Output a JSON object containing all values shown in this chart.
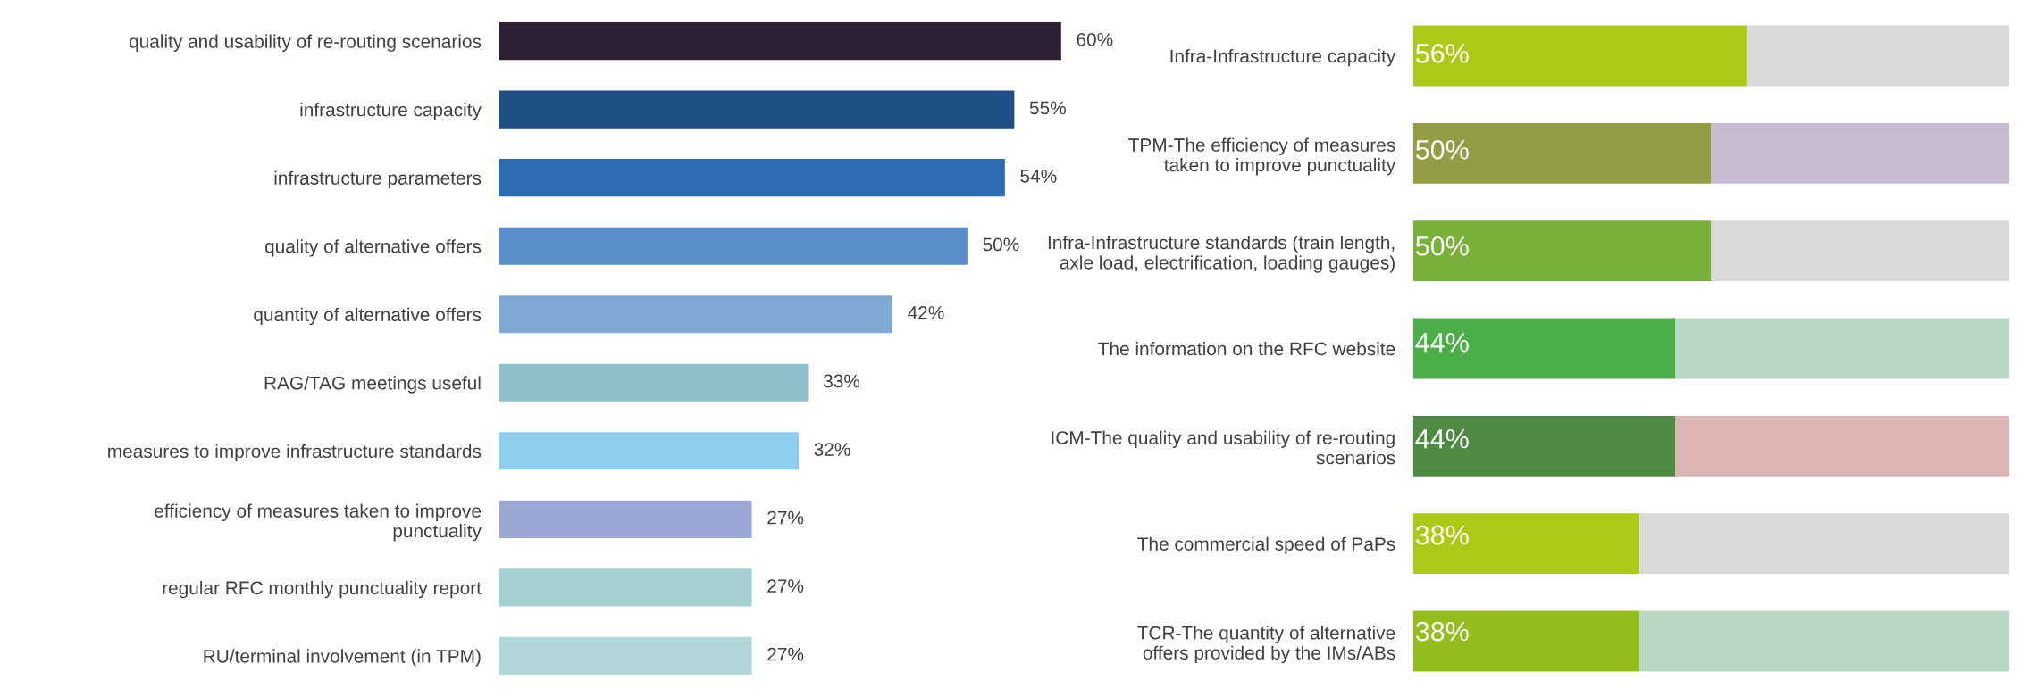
{
  "chart_data": [
    {
      "type": "bar",
      "orientation": "horizontal",
      "categories": [
        "quality and usability of re-routing scenarios",
        "infrastructure capacity",
        "infrastructure parameters",
        "quality of alternative offers",
        "quantity of alternative offers",
        "RAG/TAG meetings useful",
        "measures to improve infrastructure standards",
        "efficiency of measures taken to improve\npunctuality",
        "regular RFC monthly punctuality report",
        "RU/terminal involvement (in TPM)"
      ],
      "values": [
        60,
        55,
        54,
        50,
        42,
        33,
        32,
        27,
        27,
        27
      ],
      "colors": [
        "#2e1f33",
        "#1f4e85",
        "#2b6cb3",
        "#5a8fcb",
        "#80a8d4",
        "#8fc1c9",
        "#8ecff0",
        "#9ba8d6",
        "#a5d0d3",
        "#b2d7da"
      ],
      "value_labels": [
        "60%",
        "55%",
        "54%",
        "50%",
        "42%",
        "33%",
        "32%",
        "27%",
        "27%",
        "27%"
      ],
      "tick_labels": "y",
      "grid": false,
      "legend": false
    },
    {
      "type": "bar",
      "orientation": "horizontal",
      "stacked": true,
      "categories": [
        "Infra-Infrastructure capacity",
        "TPM-The efficiency of measures\ntaken to improve punctuality",
        "Infra-Infrastructure standards (train length,\naxle load, electrification, loading gauges)",
        "The information on the RFC website",
        "ICM-The quality and usability of re-routing\nscenarios",
        "The commercial speed of PaPs",
        "TCR-The quantity of alternative\noffers provided by the IMs/ABs"
      ],
      "series": [
        {
          "colors": [
            "#aec81a",
            "#939d46",
            "#79b03a",
            "#4bae47",
            "#4e8a44",
            "#aec81a",
            "#93be1e"
          ],
          "values": [
            56,
            50,
            50,
            44,
            44,
            38,
            38
          ],
          "value_labels": [
            "56%",
            "50%",
            "50%",
            "44%",
            "44%",
            "38%",
            "38%"
          ]
        },
        {
          "colors": [
            "#d9d9d9",
            "#c8bcd2",
            "#d9d9d9",
            "#b7d6c3",
            "#ddb4b4",
            "#d9d9d9",
            "#b7d6c3"
          ],
          "values": [
            44,
            50,
            50,
            56,
            56,
            62,
            62
          ]
        }
      ],
      "xlim": [
        0,
        100
      ],
      "tick_labels": "y",
      "grid": false,
      "legend": false
    }
  ]
}
